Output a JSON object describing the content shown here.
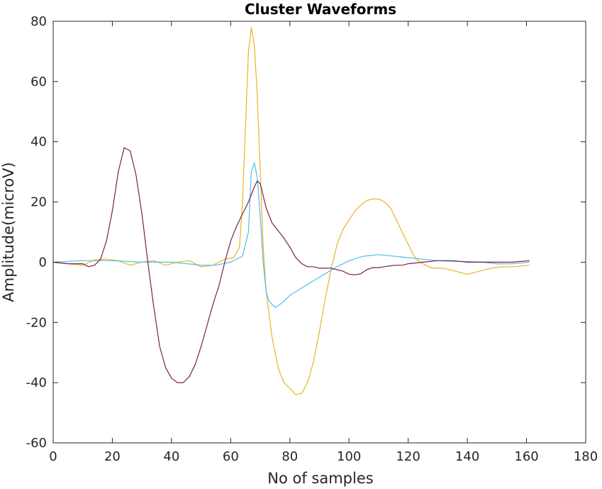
{
  "chart_data": {
    "type": "line",
    "title": "Cluster Waveforms",
    "xlabel": "No of samples",
    "ylabel": "Amplitude(microV)",
    "xlim": [
      0,
      180
    ],
    "ylim": [
      -60,
      80
    ],
    "xticks": [
      0,
      20,
      40,
      60,
      80,
      100,
      120,
      140,
      160,
      180
    ],
    "yticks": [
      80,
      60,
      40,
      20,
      0,
      -20,
      -40,
      -60
    ],
    "grid": false,
    "legend": "none",
    "series": [
      {
        "color": "#EDB120",
        "x": [
          0,
          5,
          10,
          14,
          18,
          22,
          26,
          30,
          34,
          38,
          42,
          46,
          50,
          54,
          58,
          61,
          63,
          64,
          65,
          66,
          67,
          68,
          69,
          70,
          71,
          72,
          74,
          76,
          78,
          80,
          82,
          84,
          86,
          88,
          90,
          92,
          94,
          96,
          98,
          100,
          102,
          104,
          106,
          108,
          110,
          112,
          114,
          116,
          118,
          120,
          122,
          124,
          126,
          128,
          132,
          136,
          140,
          144,
          148,
          152,
          156,
          161
        ],
        "y": [
          0,
          -0.5,
          -1,
          0.8,
          1,
          0.5,
          -1,
          0,
          0.5,
          -1,
          0,
          0.5,
          -1.5,
          -1,
          1,
          1.5,
          5,
          20,
          45,
          70,
          78,
          72,
          55,
          30,
          5,
          -10,
          -25,
          -35,
          -40,
          -42,
          -44,
          -43.5,
          -40,
          -33,
          -23,
          -12,
          -2,
          6,
          11,
          14,
          17,
          19,
          20.5,
          21,
          21,
          20,
          18,
          14,
          10,
          6,
          2,
          0,
          -1,
          -2,
          -2,
          -3,
          -4,
          -3,
          -2,
          -1.5,
          -1.5,
          -1
        ]
      },
      {
        "color": "#4DBEEE",
        "x": [
          0,
          10,
          20,
          30,
          40,
          50,
          55,
          60,
          64,
          66,
          67,
          68,
          69,
          70,
          71,
          72,
          73,
          74,
          75,
          76,
          78,
          80,
          85,
          90,
          95,
          100,
          105,
          110,
          115,
          120,
          125,
          130,
          135,
          140,
          145,
          150,
          155,
          161
        ],
        "y": [
          0,
          0.5,
          0.5,
          0,
          0,
          -1,
          -1,
          0,
          2,
          10,
          30,
          33,
          28,
          15,
          0,
          -10,
          -13,
          -14,
          -15,
          -14.5,
          -13,
          -11,
          -8,
          -5,
          -2,
          0.5,
          2,
          2.5,
          2,
          1.5,
          1,
          0.5,
          0.3,
          0.2,
          0,
          -0.5,
          -0.5,
          0
        ]
      },
      {
        "color": "#7E1E4E",
        "x": [
          0,
          5,
          10,
          12,
          14,
          16,
          18,
          20,
          22,
          24,
          26,
          28,
          30,
          32,
          34,
          36,
          38,
          40,
          42,
          44,
          46,
          48,
          50,
          52,
          54,
          56,
          58,
          60,
          62,
          64,
          66,
          68,
          69,
          70,
          72,
          74,
          76,
          78,
          80,
          82,
          84,
          86,
          88,
          90,
          92,
          94,
          96,
          98,
          100,
          102,
          104,
          106,
          108,
          110,
          112,
          114,
          116,
          118,
          120,
          125,
          130,
          135,
          140,
          145,
          150,
          155,
          161
        ],
        "y": [
          0,
          -0.5,
          -0.5,
          -1.5,
          -1,
          1,
          7,
          17,
          30,
          38,
          37,
          29,
          16,
          0,
          -15,
          -28,
          -35,
          -38.5,
          -40,
          -40,
          -38,
          -34,
          -28,
          -21,
          -14,
          -8,
          0,
          7,
          12,
          16,
          20,
          25,
          27,
          26,
          18,
          13,
          10.5,
          8,
          5,
          1.5,
          -0.5,
          -1.5,
          -1.5,
          -2,
          -2,
          -2,
          -2.5,
          -3,
          -4,
          -4.2,
          -3.8,
          -2.5,
          -1.8,
          -1.8,
          -1.5,
          -1.2,
          -1,
          -1,
          -0.5,
          0,
          0.5,
          0.5,
          0,
          0,
          0,
          0,
          0.5
        ]
      }
    ]
  }
}
